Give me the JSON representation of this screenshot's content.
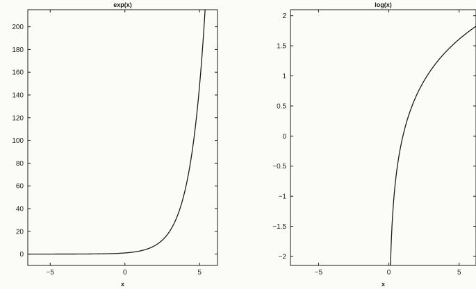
{
  "chart_data": [
    {
      "type": "line",
      "title": "exp(x)",
      "xlabel": "x",
      "ylabel": "",
      "xlim": [
        -6.5,
        6.2
      ],
      "ylim": [
        -10,
        215
      ],
      "grid": false,
      "xticks": [
        -5,
        0,
        5
      ],
      "xtick_labels": [
        "−5",
        "0",
        "5"
      ],
      "yticks": [
        0,
        20,
        40,
        60,
        80,
        100,
        120,
        140,
        160,
        180,
        200
      ],
      "ytick_labels": [
        "0",
        "20",
        "40",
        "60",
        "80",
        "100",
        "120",
        "140",
        "160",
        "180",
        "200"
      ],
      "series": [
        {
          "function": "exp",
          "x": [
            -6.5,
            -5,
            -4,
            -3,
            -2,
            -1,
            0,
            1,
            1.5,
            2,
            2.5,
            3,
            3.5,
            4,
            4.25,
            4.5,
            4.75,
            5,
            5.1,
            5.2,
            5.3,
            5.37
          ],
          "y": [
            0.0015,
            0.0067,
            0.018,
            0.05,
            0.135,
            0.368,
            1,
            2.718,
            4.48,
            7.39,
            12.18,
            20.09,
            33.12,
            54.6,
            70.11,
            90.02,
            115.58,
            148.41,
            164.02,
            181.27,
            200.34,
            214.86
          ]
        }
      ],
      "line_color": "#1a1a1a"
    },
    {
      "type": "line",
      "title": "log(x)",
      "xlabel": "x",
      "ylabel": "",
      "xlim": [
        -7.0,
        6.2
      ],
      "ylim": [
        -2.15,
        2.1
      ],
      "grid": false,
      "xticks": [
        -5,
        0,
        5
      ],
      "xtick_labels": [
        "−5",
        "0",
        "5"
      ],
      "yticks": [
        -2,
        -1.5,
        -1,
        -0.5,
        0,
        0.5,
        1,
        1.5,
        2
      ],
      "ytick_labels": [
        "−2",
        "−1.5",
        "−1",
        "−0.5",
        "0",
        "0.5",
        "1",
        "1.5",
        "2"
      ],
      "series": [
        {
          "function": "log",
          "x": [
            0.115,
            0.13,
            0.15,
            0.2,
            0.25,
            0.3,
            0.4,
            0.5,
            0.7,
            1,
            1.5,
            2,
            2.5,
            3,
            3.5,
            4,
            4.5,
            5,
            5.5,
            6,
            6.2
          ],
          "y": [
            -2.163,
            -2.04,
            -1.897,
            -1.609,
            -1.386,
            -1.204,
            -0.916,
            -0.693,
            -0.357,
            0,
            0.405,
            0.693,
            0.916,
            1.099,
            1.253,
            1.386,
            1.504,
            1.609,
            1.705,
            1.792,
            1.825
          ]
        }
      ],
      "line_color": "#1a1a1a"
    }
  ]
}
